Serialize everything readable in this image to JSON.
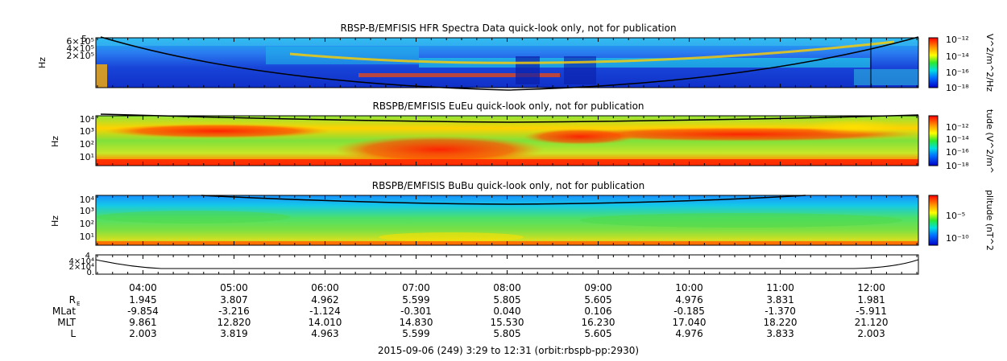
{
  "chart_data": [
    {
      "type": "heatmap",
      "title": "RBSP-B/EMFISIS  HFR Spectra Data quick-look only, not for publication",
      "ylabel": "Hz",
      "yscale": "log",
      "y_tick_labels": [
        "6×10⁵",
        "4×10⁵",
        "2×10⁵",
        "5"
      ],
      "colorbar": {
        "label": "V^2/m^2/Hz",
        "ticks": [
          "10⁻¹²",
          "10⁻¹⁴",
          "10⁻¹⁶",
          "10⁻¹⁸"
        ],
        "colormap": "rainbow"
      },
      "overlay": "black fce-type line, U-shaped, high at start and end"
    },
    {
      "type": "heatmap",
      "title": "RBSPB/EMFISIS  EuEu quick-look only, not for publication",
      "ylabel": "Hz",
      "yscale": "log",
      "y_tick_labels": [
        "10⁴",
        "10³",
        "10²",
        "10¹"
      ],
      "colorbar": {
        "label": "tude (V^2/m^",
        "ticks": [
          "10⁻¹²",
          "10⁻¹⁴",
          "10⁻¹⁶",
          "10⁻¹⁸"
        ],
        "colormap": "rainbow"
      },
      "overlay": "black line near top of panel"
    },
    {
      "type": "heatmap",
      "title": "RBSPB/EMFISIS  BuBu quick-look only, not for publication",
      "ylabel": "Hz",
      "yscale": "log",
      "y_tick_labels": [
        "10⁴",
        "10³",
        "10²",
        "10¹"
      ],
      "colorbar": {
        "label": "plitude (nT^2",
        "ticks": [
          "10⁻⁵",
          "10⁻¹⁰"
        ],
        "colormap": "rainbow"
      },
      "overlay": "black line near top of panel"
    },
    {
      "type": "line",
      "y_tick_labels": [
        "4",
        "4×10⁴",
        "2×10⁴",
        "0."
      ],
      "description_values": "U-shaped trace, high near 03:30 and 12:30, near zero in middle"
    }
  ],
  "time_axis": {
    "tick_labels": [
      "04:00",
      "05:00",
      "06:00",
      "07:00",
      "08:00",
      "09:00",
      "10:00",
      "11:00",
      "12:00"
    ],
    "start_hour": 3.483,
    "end_hour": 12.517
  },
  "ephemeris": {
    "rows": [
      {
        "label": "R",
        "subscript": "E",
        "values": [
          "1.945",
          "3.807",
          "4.962",
          "5.599",
          "5.805",
          "5.605",
          "4.976",
          "3.831",
          "1.981"
        ]
      },
      {
        "label": "MLat",
        "subscript": "",
        "values": [
          "-9.854",
          "-3.216",
          "-1.124",
          "-0.301",
          "0.040",
          "0.106",
          "-0.185",
          "-1.370",
          "-5.911"
        ]
      },
      {
        "label": "MLT",
        "subscript": "",
        "values": [
          "9.861",
          "12.820",
          "14.010",
          "14.830",
          "15.530",
          "16.230",
          "17.040",
          "18.220",
          "21.120"
        ]
      },
      {
        "label": "L",
        "subscript": "",
        "values": [
          "2.003",
          "3.819",
          "4.963",
          "5.599",
          "5.805",
          "5.605",
          "4.976",
          "3.833",
          "2.003"
        ]
      }
    ]
  },
  "footer": "2015-09-06 (249) 3:29 to 12:31 (orbit:rbspb-pp:2930)"
}
